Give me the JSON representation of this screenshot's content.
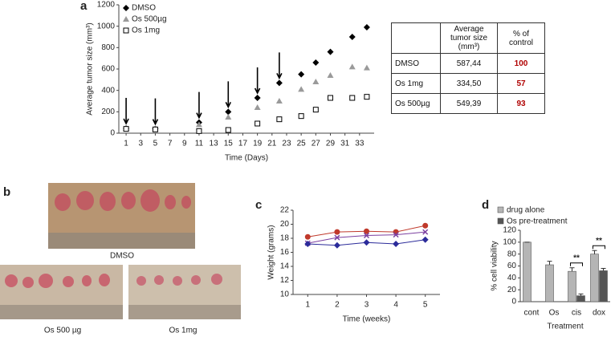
{
  "chart_data": [
    {
      "type": "scatter",
      "panel": "a",
      "xlabel": "Time (Days)",
      "ylabel": "Average tumor size (mm³)",
      "x": [
        1,
        5,
        11,
        15,
        19,
        22,
        25,
        27,
        29,
        32,
        34
      ],
      "xlim": [
        0,
        35
      ],
      "xticks": [
        1,
        3,
        5,
        7,
        9,
        11,
        13,
        15,
        17,
        19,
        21,
        23,
        25,
        27,
        29,
        31,
        33
      ],
      "ylim": [
        0,
        1200
      ],
      "yticks": [
        0,
        200,
        400,
        600,
        800,
        1000,
        1200
      ],
      "arrows_at": [
        1,
        5,
        11,
        15,
        19,
        22
      ],
      "legend": "top-left",
      "series": [
        {
          "name": "DMSO",
          "color": "#000000",
          "marker": "diamond",
          "values": [
            45,
            40,
            100,
            200,
            330,
            470,
            550,
            660,
            760,
            900,
            990
          ]
        },
        {
          "name": "Os 500µg",
          "color": "#9a9a9a",
          "marker": "triangle",
          "values": [
            45,
            40,
            80,
            150,
            240,
            300,
            410,
            480,
            540,
            620,
            610
          ]
        },
        {
          "name": "Os 1mg",
          "color": "#000000",
          "marker": "square-open",
          "values": [
            40,
            35,
            20,
            30,
            90,
            130,
            160,
            220,
            330,
            330,
            340
          ]
        }
      ]
    },
    {
      "type": "line",
      "panel": "c",
      "xlabel": "Time (weeks)",
      "ylabel": "Weight (grams)",
      "x": [
        1,
        2,
        3,
        4,
        5
      ],
      "xlim": [
        0.5,
        5.5
      ],
      "xticks": [
        1,
        2,
        3,
        4,
        5
      ],
      "ylim": [
        10,
        22
      ],
      "yticks": [
        10,
        12,
        14,
        16,
        18,
        20,
        22
      ],
      "series": [
        {
          "color": "#c0392b",
          "marker": "circle",
          "values": [
            18.2,
            18.9,
            19.0,
            18.9,
            19.8
          ]
        },
        {
          "color": "#7b3fa0",
          "marker": "x",
          "values": [
            17.3,
            18.1,
            18.4,
            18.5,
            18.9
          ]
        },
        {
          "color": "#2b2b9a",
          "marker": "diamond",
          "values": [
            17.2,
            17.0,
            17.4,
            17.2,
            17.8
          ]
        }
      ]
    },
    {
      "type": "bar",
      "panel": "d",
      "xlabel": "Treatment",
      "ylabel": "% cell viability",
      "categories": [
        "cont",
        "Os",
        "cis",
        "dox"
      ],
      "ylim": [
        0,
        120
      ],
      "yticks": [
        0,
        20,
        40,
        60,
        80,
        100,
        120
      ],
      "legend": "top-left",
      "significance": [
        null,
        null,
        "**",
        "**"
      ],
      "series": [
        {
          "name": "drug alone",
          "color": "#b5b5b5",
          "values": [
            100,
            62,
            51,
            80
          ],
          "errors": [
            0,
            6,
            6,
            6
          ]
        },
        {
          "name": "Os pre-treatment",
          "color": "#555555",
          "values": [
            null,
            null,
            10,
            52
          ],
          "errors": [
            null,
            null,
            3,
            4
          ]
        }
      ]
    }
  ],
  "table": {
    "header": [
      "Average tumor size (mm³)",
      "% of control"
    ],
    "rows": [
      [
        "DMSO",
        "587,44",
        "100"
      ],
      [
        "Os 1mg",
        "334,50",
        "57"
      ],
      [
        "Os 500µg",
        "549,39",
        "93"
      ]
    ]
  },
  "photos": {
    "panel": "b",
    "labels": [
      "DMSO",
      "Os 500 µg",
      "Os 1mg"
    ]
  }
}
